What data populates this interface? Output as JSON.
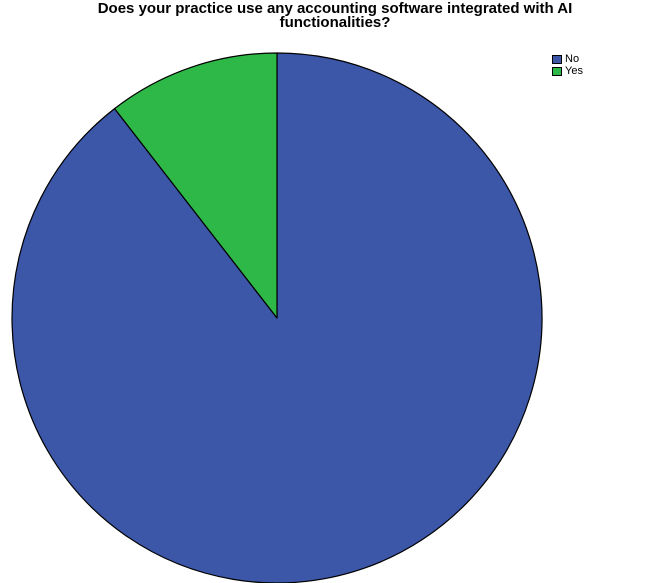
{
  "chart_data": {
    "type": "pie",
    "title_lines": [
      "Does your practice use any accounting software integrated with AI",
      "functionalities?"
    ],
    "categories": [
      "No",
      "Yes"
    ],
    "values": [
      89.5,
      10.5
    ],
    "colors": {
      "No": "#3c56a8",
      "Yes": "#2eb847"
    },
    "start_angle_deg": 0,
    "direction": "clockwise",
    "legend_position": "top-right"
  }
}
